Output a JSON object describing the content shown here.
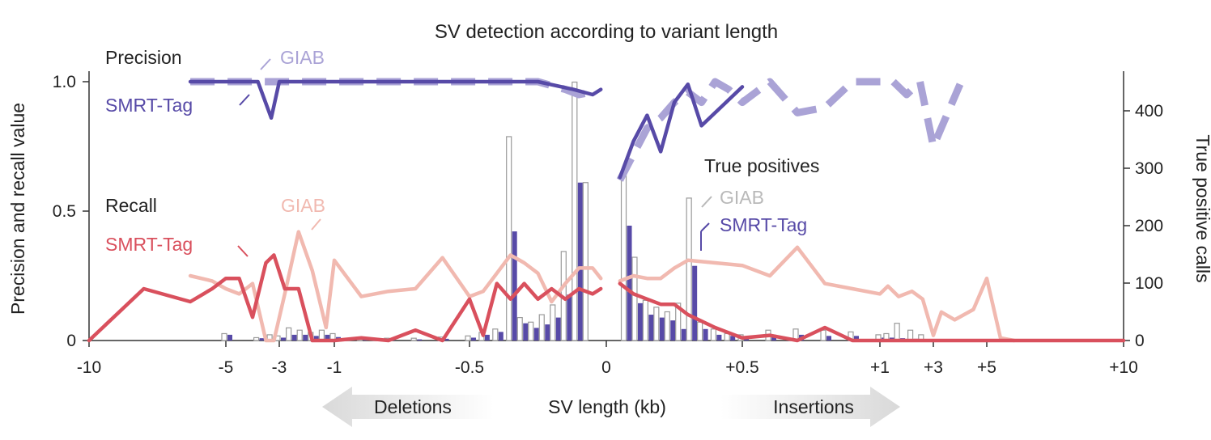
{
  "chart_data": {
    "type": "line+bar",
    "title": "SV detection according to variant length",
    "xlabel": "SV length (kb)",
    "ylabel_left": "Precision and recall value",
    "ylabel_right": "True positive calls",
    "y_left_range": [
      0,
      1.0
    ],
    "y_right_range": [
      0,
      450
    ],
    "x_ticks": [
      "-10",
      "-5",
      "-3",
      "-1",
      "-0.5",
      "0",
      "+0.5",
      "+1",
      "+3",
      "+5",
      "+10"
    ],
    "x_tick_positions": [
      -10,
      -5,
      -3,
      -1,
      -0.5,
      0,
      0.5,
      1,
      3,
      5,
      10
    ],
    "y_left_ticks": [
      "0",
      "0.5",
      "1.0"
    ],
    "y_left_tick_values": [
      0,
      0.5,
      1.0
    ],
    "y_right_ticks": [
      "0",
      "100",
      "200",
      "300",
      "400"
    ],
    "y_right_tick_values": [
      0,
      100,
      200,
      300,
      400
    ],
    "arrows": {
      "left": "Deletions",
      "right": "Insertions"
    },
    "legend": {
      "precision_title": "Precision",
      "recall_title": "Recall",
      "tp_title": "True positives",
      "giab": "GIAB",
      "smrt": "SMRT-Tag"
    },
    "colors": {
      "smrt_precision": "#574aa7",
      "giab_precision": "#aaa3d6",
      "smrt_recall": "#d9505d",
      "giab_recall": "#f1b9b0",
      "smrt_bar": "#574aa7",
      "giab_bar_edge": "#9a9a9a",
      "giab_label": "#b9b9b9",
      "axis": "#333333"
    },
    "series": [
      {
        "name": "Precision GIAB",
        "axis": "left",
        "style": "dashed",
        "x": [
          -6.3,
          -3.8,
          -3.3,
          -3,
          -1,
          -0.75,
          -0.5,
          -0.25,
          -0.15,
          -0.1,
          -0.05,
          null,
          0.05,
          0.1,
          0.15,
          0.2,
          0.25,
          0.3,
          0.35,
          0.4,
          0.45,
          0.5,
          0.6,
          0.7,
          0.8,
          0.9,
          1.0,
          1.5,
          2.0,
          2.5,
          3.0,
          3.5,
          4.0
        ],
        "y": [
          1.0,
          1.0,
          1.0,
          1.0,
          1.0,
          1.0,
          1.0,
          1.0,
          0.97,
          0.95,
          0.96,
          null,
          0.62,
          0.72,
          0.82,
          0.86,
          0.92,
          0.96,
          0.92,
          1.0,
          0.97,
          0.92,
          1.0,
          0.88,
          0.9,
          1.0,
          1.0,
          1.0,
          0.95,
          1.0,
          0.75,
          0.87,
          0.99
        ]
      },
      {
        "name": "Precision SMRT-Tag",
        "axis": "left",
        "style": "solid",
        "x": [
          -6.3,
          -4.5,
          -3.8,
          -3.3,
          -3,
          -1,
          -0.5,
          -0.25,
          -0.12,
          -0.05,
          -0.02,
          null,
          0.05,
          0.1,
          0.15,
          0.2,
          0.25,
          0.3,
          0.35,
          0.4,
          0.45,
          0.5
        ],
        "y": [
          1.0,
          1.0,
          1.0,
          0.86,
          1.0,
          1.0,
          1.0,
          1.0,
          0.97,
          0.95,
          0.97,
          null,
          0.63,
          0.77,
          0.87,
          0.73,
          0.92,
          0.99,
          0.83,
          0.88,
          0.93,
          0.98
        ]
      },
      {
        "name": "Recall GIAB",
        "axis": "left",
        "style": "solid",
        "x": [
          -6.3,
          -5.5,
          -5.0,
          -4.5,
          -4.0,
          -3.5,
          -3.2,
          -2.8,
          -2.3,
          -1.8,
          -1.3,
          -1.0,
          -0.9,
          -0.8,
          -0.7,
          -0.6,
          -0.5,
          -0.45,
          -0.4,
          -0.35,
          -0.3,
          -0.25,
          -0.2,
          -0.15,
          -0.1,
          -0.05,
          -0.02,
          null,
          0.05,
          0.1,
          0.15,
          0.2,
          0.25,
          0.3,
          0.4,
          0.5,
          0.6,
          0.7,
          0.8,
          0.9,
          1.0,
          1.3,
          1.7,
          2.2,
          2.6,
          3.0,
          3.3,
          3.8,
          4.5,
          5.0,
          5.5,
          6.0
        ],
        "y": [
          0.25,
          0.23,
          0.2,
          0.18,
          0.22,
          0.0,
          0.0,
          0.18,
          0.42,
          0.27,
          0.05,
          0.31,
          0.17,
          0.19,
          0.2,
          0.32,
          0.17,
          0.19,
          0.26,
          0.33,
          0.3,
          0.26,
          0.15,
          0.22,
          0.28,
          0.28,
          0.24,
          null,
          0.23,
          0.25,
          0.24,
          0.24,
          0.28,
          0.31,
          0.3,
          0.29,
          0.25,
          0.36,
          0.22,
          0.2,
          0.18,
          0.21,
          0.17,
          0.19,
          0.16,
          0.02,
          0.11,
          0.08,
          0.12,
          0.24,
          0.01,
          0.0
        ]
      },
      {
        "name": "Recall SMRT-Tag",
        "axis": "left",
        "style": "solid",
        "x": [
          -10,
          -8.0,
          -6.3,
          -5.5,
          -5.0,
          -4.5,
          -4.0,
          -3.5,
          -3.2,
          -2.8,
          -2.3,
          -1.8,
          -1.3,
          -1.0,
          -0.9,
          -0.8,
          -0.7,
          -0.6,
          -0.5,
          -0.45,
          -0.4,
          -0.35,
          -0.3,
          -0.25,
          -0.2,
          -0.15,
          -0.1,
          -0.05,
          -0.02,
          null,
          0.05,
          0.1,
          0.15,
          0.2,
          0.25,
          0.3,
          0.4,
          0.5,
          0.6,
          0.7,
          0.8,
          0.9,
          1.0,
          1.3,
          1.7,
          2.2,
          2.6,
          3.0,
          3.3,
          3.8,
          4.5,
          5.0,
          5.5,
          6.0,
          10
        ],
        "y": [
          0.0,
          0.2,
          0.15,
          0.2,
          0.24,
          0.24,
          0.09,
          0.3,
          0.33,
          0.2,
          0.2,
          0.0,
          0.0,
          0.0,
          0.01,
          0.0,
          0.04,
          0.0,
          0.16,
          0.02,
          0.22,
          0.16,
          0.22,
          0.16,
          0.2,
          0.16,
          0.2,
          0.18,
          0.2,
          null,
          0.22,
          0.18,
          0.16,
          0.14,
          0.14,
          0.1,
          0.05,
          0.01,
          0.02,
          0.0,
          0.05,
          0.0,
          0.0,
          0.0,
          0.0,
          0.0,
          0.0,
          0.0,
          0.0,
          0.0,
          0.0,
          0.0,
          0.0,
          0.0,
          0.0
        ]
      }
    ],
    "bars": {
      "axis": "right",
      "x": [
        -5.0,
        -3.8,
        -3.3,
        -3.0,
        -2.6,
        -2.2,
        -1.8,
        -1.4,
        -1.0,
        -0.9,
        -0.8,
        -0.7,
        -0.6,
        -0.5,
        -0.45,
        -0.4,
        -0.35,
        -0.31,
        -0.27,
        -0.23,
        -0.19,
        -0.15,
        -0.11,
        -0.07,
        -0.03,
        0.07,
        0.11,
        0.15,
        0.19,
        0.23,
        0.27,
        0.31,
        0.35,
        0.4,
        0.45,
        0.5,
        0.6,
        0.7,
        0.8,
        0.9,
        1.0,
        1.3,
        1.7,
        2.2,
        2.6,
        3.0,
        3.4
      ],
      "giab": [
        12,
        5,
        10,
        8,
        22,
        18,
        14,
        18,
        12,
        6,
        4,
        4,
        6,
        8,
        14,
        20,
        355,
        40,
        32,
        45,
        62,
        155,
        450,
        275,
        0,
        295,
        145,
        70,
        58,
        50,
        65,
        248,
        32,
        20,
        12,
        10,
        18,
        20,
        18,
        15,
        10,
        12,
        30,
        18,
        10,
        0,
        0
      ],
      "smrt": [
        10,
        4,
        7,
        5,
        10,
        10,
        8,
        10,
        6,
        4,
        2,
        2,
        3,
        5,
        10,
        15,
        190,
        30,
        22,
        28,
        40,
        80,
        275,
        0,
        0,
        200,
        65,
        45,
        40,
        35,
        20,
        130,
        20,
        10,
        8,
        6,
        10,
        10,
        8,
        8,
        5,
        5,
        4,
        3,
        2,
        0,
        0
      ]
    }
  }
}
